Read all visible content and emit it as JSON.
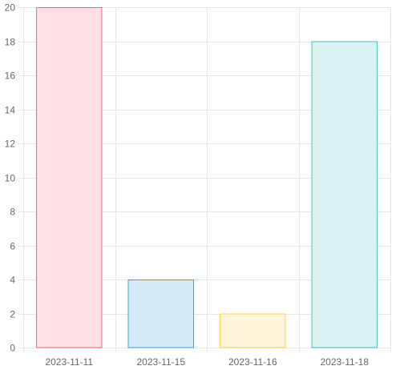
{
  "chart_data": {
    "type": "bar",
    "categories": [
      "2023-11-11",
      "2023-11-15",
      "2023-11-16",
      "2023-11-18"
    ],
    "values": [
      20,
      4,
      2,
      18
    ],
    "ylim": [
      0,
      20
    ],
    "y_ticks": [
      0,
      2,
      4,
      6,
      8,
      10,
      12,
      14,
      16,
      18,
      20
    ],
    "y_tick_labels": [
      "0",
      "2",
      "4",
      "6",
      "8",
      "10",
      "12",
      "14",
      "16",
      "18",
      "20"
    ],
    "grid": true,
    "legend": "none",
    "colors": {
      "fills": [
        "#ffe0e6",
        "#d7ecfb",
        "#fff5dd",
        "#dbf2f2"
      ],
      "borders": [
        "#ff6384",
        "#36a2eb",
        "#ffce56",
        "#4bc0c0"
      ],
      "grid": "#e5e5e5",
      "tick_text": "#666666"
    }
  }
}
